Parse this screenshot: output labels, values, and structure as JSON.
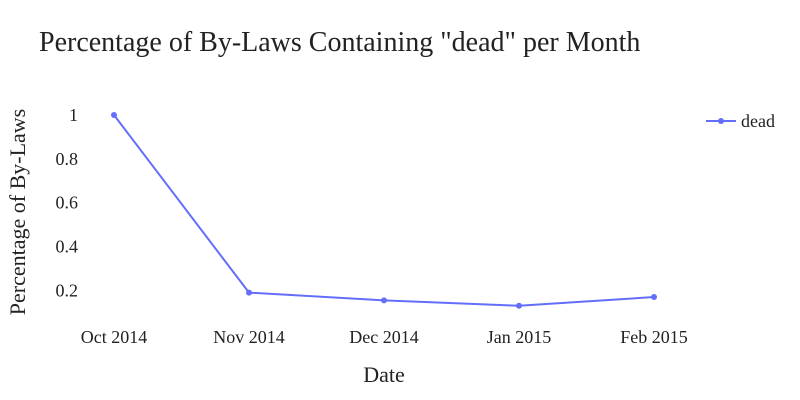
{
  "chart_data": {
    "type": "line",
    "title": "Percentage of By-Laws Containing \"dead\" per Month",
    "xlabel": "Date",
    "ylabel": "Percentage of By-Laws",
    "categories": [
      "Oct 2014",
      "Nov 2014",
      "Dec 2014",
      "Jan 2015",
      "Feb 2015"
    ],
    "series": [
      {
        "name": "dead",
        "values": [
          1.0,
          0.19,
          0.155,
          0.13,
          0.17
        ],
        "color": "#636efa"
      }
    ],
    "ylim": [
      0.12,
      1.0
    ],
    "yticks": [
      "1",
      "0.8",
      "0.6",
      "0.4",
      "0.2"
    ],
    "ytick_values": [
      1.0,
      0.8,
      0.6,
      0.4,
      0.2
    ],
    "grid": false,
    "legend": "top-right"
  }
}
